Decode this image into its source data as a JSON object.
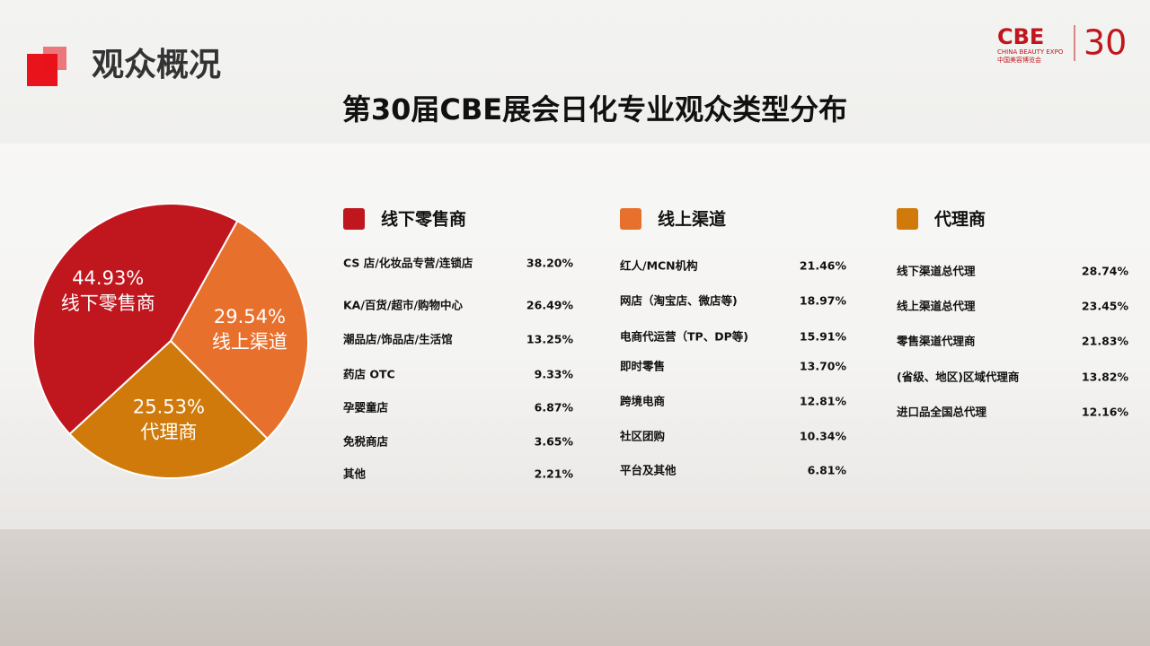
{
  "header": {
    "section": "观众概况",
    "logo": "CBE",
    "logo_en": "CHINA BEAUTY EXPO",
    "logo_cn": "中国美容博览会",
    "logo_num": "30"
  },
  "chart_data": {
    "type": "pie",
    "title": "第30届CBE展会日化专业观众类型分布",
    "categories": [
      "线下零售商",
      "线上渠道",
      "代理商"
    ],
    "values": [
      44.93,
      29.54,
      25.53
    ],
    "value_labels": [
      "44.93%",
      "29.54%",
      "25.53%"
    ],
    "colors": [
      "#c0161d",
      "#e8702d",
      "#d07a0b"
    ]
  },
  "lists": [
    {
      "header": "线下零售商",
      "color": "#c0161d",
      "items": [
        {
          "label": "CS 店/化妆品专营/连锁店",
          "value": "38.20%"
        },
        {
          "label": "KA/百货/超市/购物中心",
          "value": "26.49%"
        },
        {
          "label": "潮品店/饰品店/生活馆",
          "value": "13.25%"
        },
        {
          "label": "药店 OTC",
          "value": "9.33%"
        },
        {
          "label": "孕婴童店",
          "value": "6.87%"
        },
        {
          "label": "免税商店",
          "value": "3.65%"
        },
        {
          "label": "其他",
          "value": "2.21%"
        }
      ]
    },
    {
      "header": "线上渠道",
      "color": "#e8702d",
      "items": [
        {
          "label": "红人/MCN机构",
          "value": "21.46%"
        },
        {
          "label": "网店（淘宝店、微店等)",
          "value": "18.97%"
        },
        {
          "label": "电商代运营（TP、DP等)",
          "value": "15.91%"
        },
        {
          "label": "即时零售",
          "value": "13.70%"
        },
        {
          "label": "跨境电商",
          "value": "12.81%"
        },
        {
          "label": "社区团购",
          "value": "10.34%"
        },
        {
          "label": "平台及其他",
          "value": "6.81%"
        }
      ]
    },
    {
      "header": "代理商",
      "color": "#d07a0b",
      "items": [
        {
          "label": "线下渠道总代理",
          "value": "28.74%"
        },
        {
          "label": "线上渠道总代理",
          "value": "23.45%"
        },
        {
          "label": "零售渠道代理商",
          "value": "21.83%"
        },
        {
          "label": "(省级、地区)区域代理商",
          "value": "13.82%"
        },
        {
          "label": "进口品全国总代理",
          "value": "12.16%"
        }
      ]
    }
  ]
}
